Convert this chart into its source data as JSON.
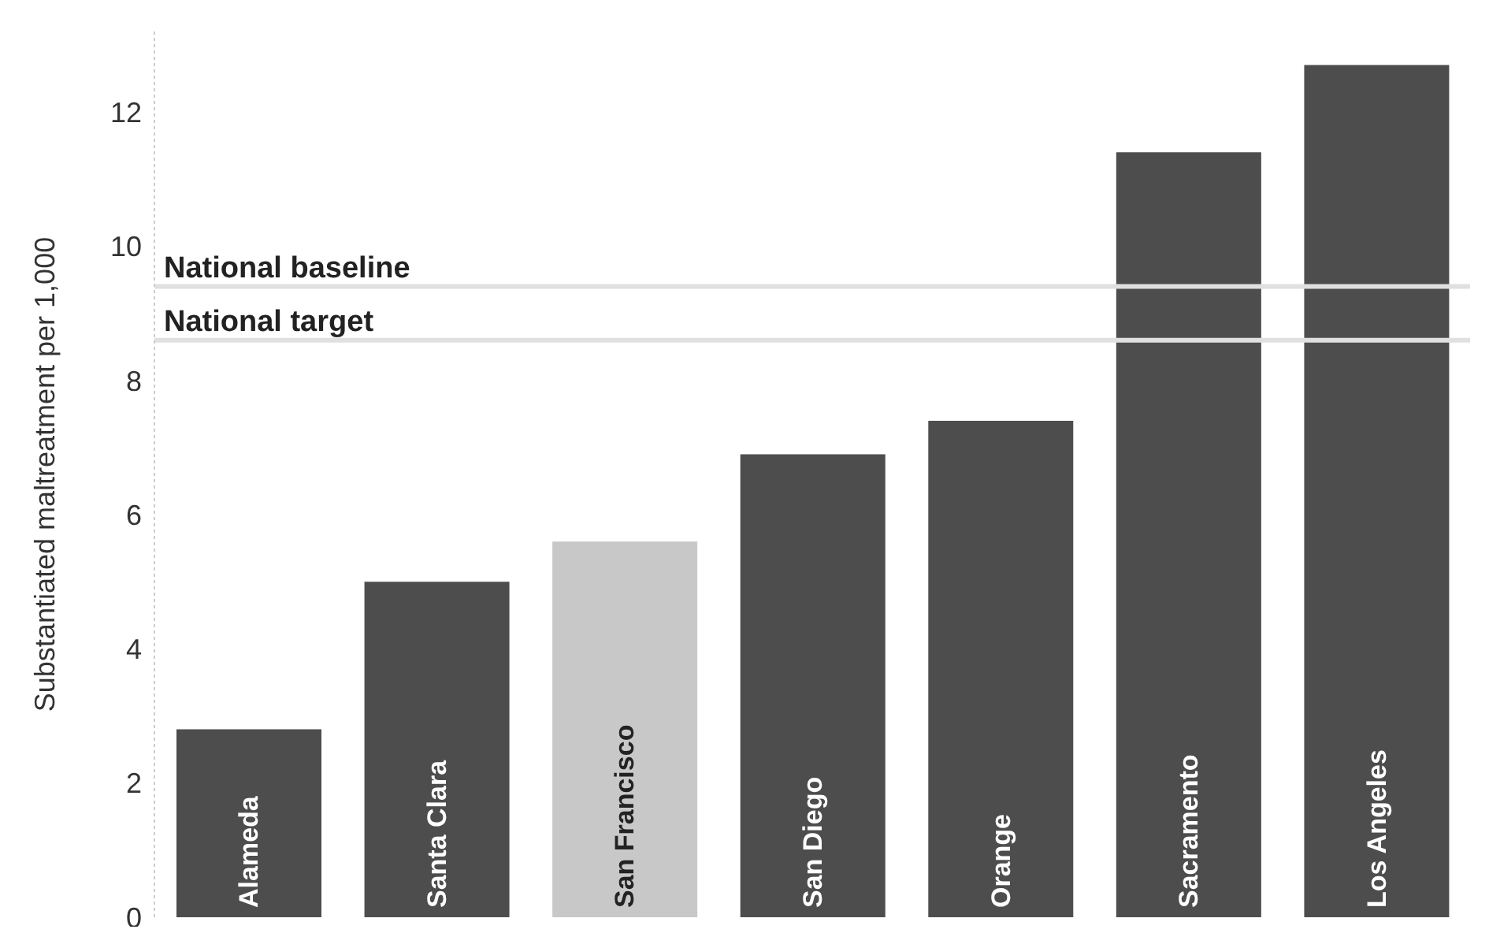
{
  "chart_data": {
    "type": "bar",
    "ylabel": "Substantiated maltreatment per 1,000",
    "categories": [
      "Alameda",
      "Santa Clara",
      "San Francisco",
      "San Diego",
      "Orange",
      "Sacramento",
      "Los Angeles"
    ],
    "values": [
      2.8,
      5.0,
      5.6,
      6.9,
      7.4,
      11.4,
      12.7
    ],
    "colors": [
      "#4d4d4d",
      "#4d4d4d",
      "#c8c8c8",
      "#4d4d4d",
      "#4d4d4d",
      "#4d4d4d",
      "#4d4d4d"
    ],
    "ylim": [
      0,
      13.2
    ],
    "yticks": [
      0,
      2,
      4,
      6,
      8,
      10,
      12
    ],
    "grid": false,
    "ref_lines": [
      {
        "axis": "y",
        "value": 9.4,
        "label": "National baseline",
        "color": "#e0e0e0"
      },
      {
        "axis": "y",
        "value": 8.6,
        "label": "National target",
        "color": "#e0e0e0"
      }
    ]
  }
}
